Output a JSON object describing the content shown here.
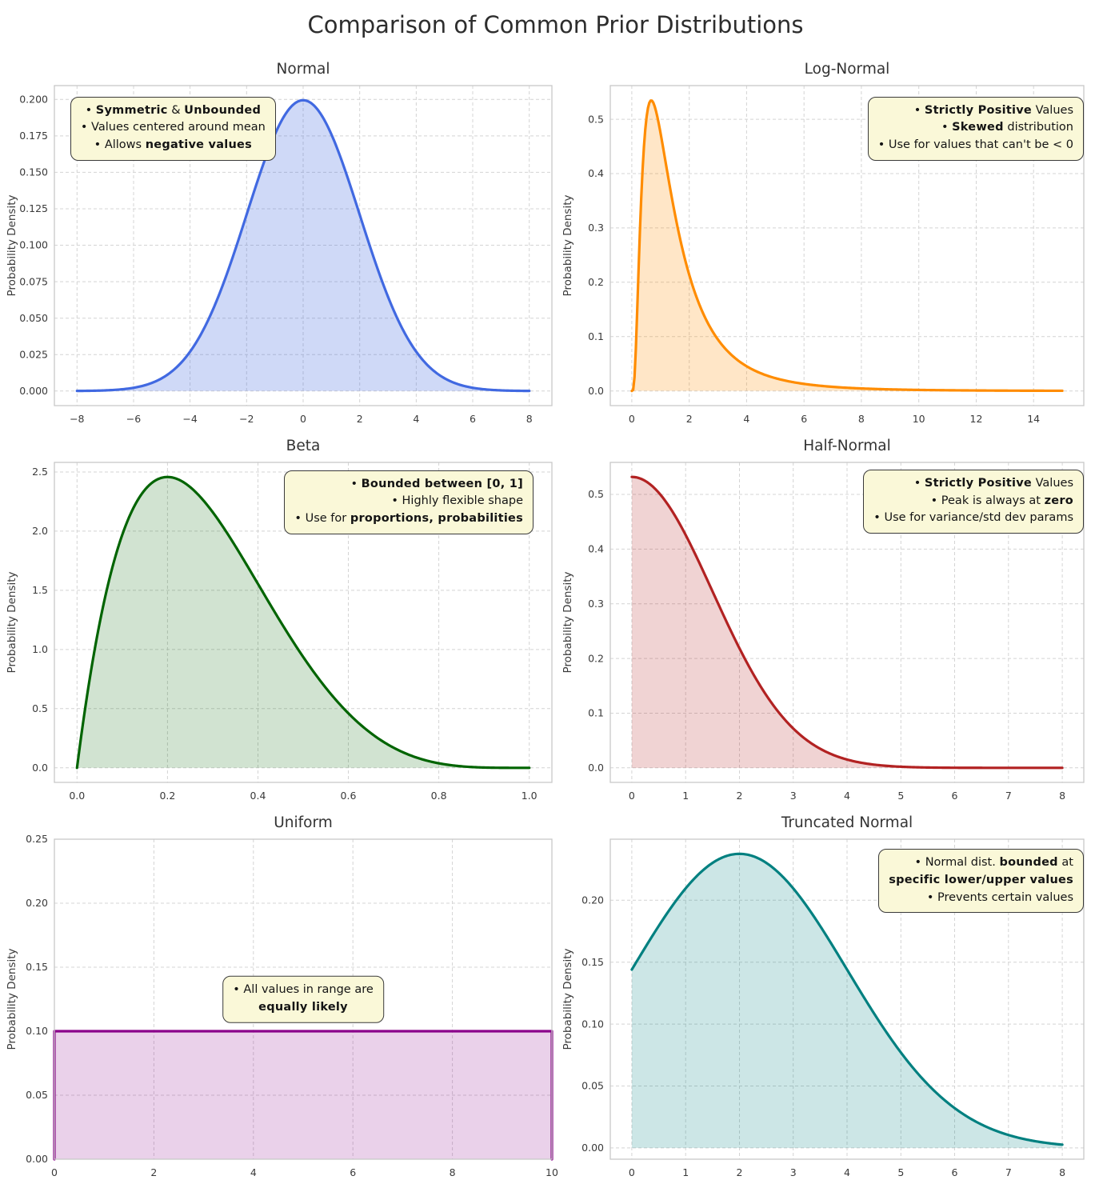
{
  "page": {
    "suptitle": "Comparison of Common Prior Distributions"
  },
  "colors": {
    "background": "#ffffff",
    "grid": "#d4d4d4",
    "frame": "#c8c8c8",
    "tick_text": "#3a3a3a",
    "annotation_bg": "#faf8d8",
    "annotation_border": "#3a3a3a"
  },
  "chart_data": [
    {
      "id": "normal",
      "type": "area",
      "title": "Normal",
      "ylabel": "Probability Density",
      "distribution": "normal",
      "params": {
        "mu": 0,
        "sigma": 2
      },
      "x_data_range": [
        -8,
        8
      ],
      "xlim": [
        -8.8,
        8.8
      ],
      "ylim": [
        -0.01,
        0.2095
      ],
      "xticks": {
        "values": [
          -8,
          -6,
          -4,
          -2,
          0,
          2,
          4,
          6,
          8
        ],
        "labels": [
          "−8",
          "−6",
          "−4",
          "−2",
          "0",
          "2",
          "4",
          "6",
          "8"
        ]
      },
      "yticks": {
        "values": [
          0,
          0.025,
          0.05,
          0.075,
          0.1,
          0.125,
          0.15,
          0.175,
          0.2
        ],
        "labels": [
          "0.000",
          "0.025",
          "0.050",
          "0.075",
          "0.100",
          "0.125",
          "0.150",
          "0.175",
          "0.200"
        ]
      },
      "peak": {
        "x": 0,
        "density": 0.199
      },
      "grid": true,
      "line_color": "#4169e1",
      "fill_color": "rgba(65,105,225,0.25)",
      "annotation": {
        "align": "center",
        "anchor": "top-left",
        "fx": 0.032,
        "fy": 0.034,
        "lines": [
          [
            {
              "t": "• "
            },
            {
              "t": "Symmetric",
              "b": true
            },
            {
              "t": " & "
            },
            {
              "t": "Unbounded",
              "b": true
            }
          ],
          [
            {
              "t": "• Values centered around mean"
            }
          ],
          [
            {
              "t": "• Allows "
            },
            {
              "t": "negative values",
              "b": true
            }
          ]
        ]
      }
    },
    {
      "id": "lognormal",
      "type": "area",
      "title": "Log-Normal",
      "ylabel": "Probability Density",
      "distribution": "lognormal",
      "params": {
        "mu": 0.25,
        "sigma": 0.8
      },
      "x_data_range": [
        0,
        15
      ],
      "xlim": [
        -0.75,
        15.75
      ],
      "ylim": [
        -0.027,
        0.562
      ],
      "xticks": {
        "values": [
          0,
          2,
          4,
          6,
          8,
          10,
          12,
          14
        ],
        "labels": [
          "0",
          "2",
          "4",
          "6",
          "8",
          "10",
          "12",
          "14"
        ]
      },
      "yticks": {
        "values": [
          0,
          0.1,
          0.2,
          0.3,
          0.4,
          0.5
        ],
        "labels": [
          "0.0",
          "0.1",
          "0.2",
          "0.3",
          "0.4",
          "0.5"
        ]
      },
      "peak": {
        "x": 0.68,
        "density": 0.535
      },
      "grid": true,
      "line_color": "#ff8c00",
      "fill_color": "rgba(255,140,0,0.22)",
      "annotation": {
        "align": "right",
        "anchor": "top-right",
        "fx": 1.0,
        "fy": 0.034,
        "lines": [
          [
            {
              "t": "• "
            },
            {
              "t": "Strictly Positive",
              "b": true
            },
            {
              "t": " Values"
            }
          ],
          [
            {
              "t": "• "
            },
            {
              "t": "Skewed",
              "b": true
            },
            {
              "t": " distribution"
            }
          ],
          [
            {
              "t": "• Use for values that can't be < 0"
            }
          ]
        ]
      }
    },
    {
      "id": "beta",
      "type": "area",
      "title": "Beta",
      "ylabel": "Probability Density",
      "distribution": "beta",
      "params": {
        "alpha": 2,
        "beta": 5,
        "norm": 30
      },
      "x_data_range": [
        0,
        1
      ],
      "xlim": [
        -0.05,
        1.05
      ],
      "ylim": [
        -0.123,
        2.581
      ],
      "xticks": {
        "values": [
          0,
          0.2,
          0.4,
          0.6,
          0.8,
          1.0
        ],
        "labels": [
          "0.0",
          "0.2",
          "0.4",
          "0.6",
          "0.8",
          "1.0"
        ]
      },
      "yticks": {
        "values": [
          0,
          0.5,
          1.0,
          1.5,
          2.0,
          2.5
        ],
        "labels": [
          "0.0",
          "0.5",
          "1.0",
          "1.5",
          "2.0",
          "2.5"
        ]
      },
      "peak": {
        "x": 0.2,
        "density": 2.458
      },
      "grid": true,
      "line_color": "#006400",
      "fill_color": "rgba(0,100,0,0.18)",
      "annotation": {
        "align": "right",
        "anchor": "top-right",
        "fx": 0.963,
        "fy": 0.024,
        "lines": [
          [
            {
              "t": "• "
            },
            {
              "t": "Bounded between [0, 1]",
              "b": true
            }
          ],
          [
            {
              "t": "• Highly flexible shape"
            }
          ],
          [
            {
              "t": "• Use for "
            },
            {
              "t": "proportions, probabilities",
              "b": true
            }
          ]
        ]
      }
    },
    {
      "id": "halfnormal",
      "type": "area",
      "title": "Half-Normal",
      "ylabel": "Probability Density",
      "distribution": "halfnormal",
      "params": {
        "sigma": 1.5
      },
      "x_data_range": [
        0,
        8
      ],
      "xlim": [
        -0.4,
        8.4
      ],
      "ylim": [
        -0.0266,
        0.5585
      ],
      "xticks": {
        "values": [
          0,
          1,
          2,
          3,
          4,
          5,
          6,
          7,
          8
        ],
        "labels": [
          "0",
          "1",
          "2",
          "3",
          "4",
          "5",
          "6",
          "7",
          "8"
        ]
      },
      "yticks": {
        "values": [
          0,
          0.1,
          0.2,
          0.3,
          0.4,
          0.5
        ],
        "labels": [
          "0.0",
          "0.1",
          "0.2",
          "0.3",
          "0.4",
          "0.5"
        ]
      },
      "peak": {
        "x": 0,
        "density": 0.532
      },
      "grid": true,
      "line_color": "#b22222",
      "fill_color": "rgba(178,34,34,0.2)",
      "annotation": {
        "align": "right",
        "anchor": "top-right",
        "fx": 1.0,
        "fy": 0.022,
        "lines": [
          [
            {
              "t": "• "
            },
            {
              "t": "Strictly Positive",
              "b": true
            },
            {
              "t": " Values"
            }
          ],
          [
            {
              "t": "• Peak is always at "
            },
            {
              "t": "zero",
              "b": true
            }
          ],
          [
            {
              "t": "• Use for variance/std dev params"
            }
          ]
        ]
      }
    },
    {
      "id": "uniform",
      "type": "area",
      "title": "Uniform",
      "ylabel": "Probability Density",
      "distribution": "uniform",
      "params": {
        "lower": 0,
        "upper": 10,
        "density": 0.1
      },
      "x_data_range": [
        0,
        10
      ],
      "xlim": [
        0,
        10
      ],
      "ylim": [
        0,
        0.25
      ],
      "xticks": {
        "values": [
          0,
          2,
          4,
          6,
          8,
          10
        ],
        "labels": [
          "0",
          "2",
          "4",
          "6",
          "8",
          "10"
        ]
      },
      "yticks": {
        "values": [
          0,
          0.05,
          0.1,
          0.15,
          0.2,
          0.25
        ],
        "labels": [
          "0.00",
          "0.05",
          "0.10",
          "0.15",
          "0.20",
          "0.25"
        ]
      },
      "peak": {
        "x": null,
        "density": 0.1
      },
      "grid": true,
      "line_color": "#8b008b",
      "fill_color": "rgba(139,0,139,0.18)",
      "line_points": [
        [
          0,
          0
        ],
        [
          0,
          0.1
        ],
        [
          10,
          0.1
        ],
        [
          10,
          0
        ]
      ],
      "annotation": {
        "align": "center",
        "anchor": "center",
        "fx": 0.5,
        "fy": 0.5,
        "lines": [
          [
            {
              "t": "• All values in range are"
            }
          ],
          [
            {
              "t": "equally likely",
              "b": true
            }
          ]
        ]
      }
    },
    {
      "id": "truncnormal",
      "type": "area",
      "title": "Truncated Normal",
      "ylabel": "Probability Density",
      "distribution": "truncnorm",
      "params": {
        "mu": 2,
        "sigma": 2,
        "lower": 0,
        "upper": 8,
        "z": 0.84
      },
      "x_data_range": [
        0,
        8
      ],
      "xlim": [
        -0.4,
        8.4
      ],
      "ylim": [
        -0.0091,
        0.2493
      ],
      "xticks": {
        "values": [
          0,
          1,
          2,
          3,
          4,
          5,
          6,
          7,
          8
        ],
        "labels": [
          "0",
          "1",
          "2",
          "3",
          "4",
          "5",
          "6",
          "7",
          "8"
        ]
      },
      "yticks": {
        "values": [
          0,
          0.05,
          0.1,
          0.15,
          0.2
        ],
        "labels": [
          "0.00",
          "0.05",
          "0.10",
          "0.15",
          "0.20"
        ]
      },
      "peak": {
        "x": 2,
        "density": 0.237
      },
      "grid": true,
      "line_color": "#008080",
      "fill_color": "rgba(0,128,128,0.2)",
      "annotation": {
        "align": "right",
        "anchor": "top-right",
        "fx": 1.0,
        "fy": 0.03,
        "lines": [
          [
            {
              "t": "• Normal dist. "
            },
            {
              "t": "bounded",
              "b": true
            },
            {
              "t": " at"
            }
          ],
          [
            {
              "t": "specific lower/upper values",
              "b": true
            }
          ],
          [
            {
              "t": "• Prevents certain values"
            }
          ]
        ]
      }
    }
  ]
}
